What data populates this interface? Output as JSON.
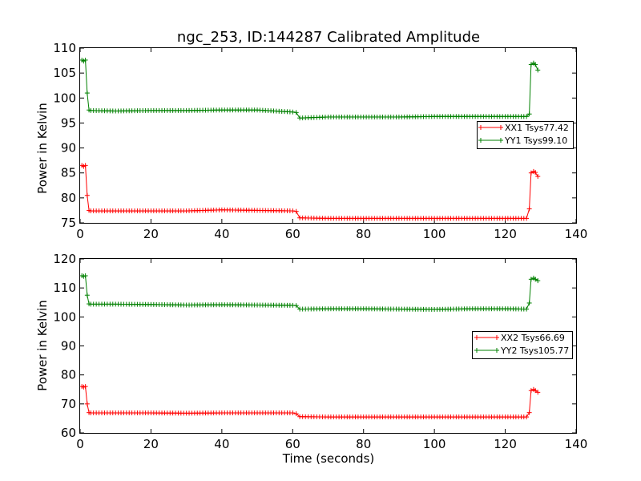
{
  "chart_data": [
    {
      "type": "line",
      "title": "ngc_253, ID:144287 Calibrated Amplitude",
      "xlabel": "",
      "ylabel": "Power in Kelvin",
      "xlim": [
        0,
        140
      ],
      "ylim": [
        75,
        110
      ],
      "xticks": [
        0,
        20,
        40,
        60,
        80,
        100,
        120,
        140
      ],
      "yticks": [
        75,
        80,
        85,
        90,
        95,
        100,
        105,
        110
      ],
      "legend_position": "right",
      "series": [
        {
          "name": "XX1 Tsys77.42",
          "color": "#ff0000",
          "x": [
            0.5,
            1.0,
            1.5,
            2.0,
            2.5,
            3.0,
            10,
            20,
            30,
            40,
            50,
            60,
            61,
            62,
            70,
            80,
            90,
            100,
            110,
            120,
            126,
            126.8,
            127.3,
            128,
            128.5,
            129.2
          ],
          "y": [
            86.5,
            86.3,
            86.5,
            80.5,
            77.5,
            77.4,
            77.4,
            77.4,
            77.4,
            77.6,
            77.5,
            77.4,
            77.3,
            76.0,
            75.9,
            75.9,
            75.9,
            75.9,
            75.9,
            75.9,
            75.9,
            77.8,
            85.0,
            85.3,
            85.1,
            84.3
          ]
        },
        {
          "name": "YY1 Tsys99.10",
          "color": "#008000",
          "x": [
            0.5,
            1.0,
            1.5,
            2.0,
            2.5,
            3.0,
            10,
            20,
            30,
            40,
            50,
            60,
            61,
            62,
            70,
            80,
            90,
            100,
            110,
            120,
            126,
            126.8,
            127.3,
            128,
            128.5,
            129.2
          ],
          "y": [
            107.6,
            107.4,
            107.6,
            101.0,
            97.6,
            97.5,
            97.4,
            97.5,
            97.5,
            97.6,
            97.6,
            97.2,
            97.1,
            96.0,
            96.2,
            96.2,
            96.2,
            96.3,
            96.3,
            96.3,
            96.3,
            96.8,
            106.7,
            107.0,
            106.7,
            105.6
          ]
        }
      ]
    },
    {
      "type": "line",
      "title": "",
      "xlabel": "Time (seconds)",
      "ylabel": "Power in Kelvin",
      "xlim": [
        0,
        140
      ],
      "ylim": [
        60,
        120
      ],
      "xticks": [
        0,
        20,
        40,
        60,
        80,
        100,
        120,
        140
      ],
      "yticks": [
        60,
        70,
        80,
        90,
        100,
        110,
        120
      ],
      "legend_position": "right",
      "series": [
        {
          "name": "XX2 Tsys66.69",
          "color": "#ff0000",
          "x": [
            0.5,
            1.0,
            1.5,
            2.0,
            2.5,
            3.0,
            10,
            20,
            30,
            40,
            50,
            60,
            61,
            62,
            70,
            80,
            90,
            100,
            110,
            120,
            126,
            126.8,
            127.3,
            128,
            128.5,
            129.2
          ],
          "y": [
            76.0,
            75.8,
            76.0,
            70.0,
            67.0,
            66.9,
            66.9,
            66.9,
            66.8,
            66.9,
            66.9,
            66.9,
            66.6,
            65.6,
            65.5,
            65.5,
            65.5,
            65.5,
            65.5,
            65.5,
            65.5,
            67.0,
            74.6,
            75.0,
            74.6,
            74.0
          ]
        },
        {
          "name": "YY2 Tsys105.77",
          "color": "#008000",
          "x": [
            0.5,
            1.0,
            1.5,
            2.0,
            2.5,
            3.0,
            10,
            20,
            30,
            40,
            50,
            60,
            61,
            62,
            70,
            80,
            90,
            100,
            110,
            120,
            126,
            126.8,
            127.3,
            128,
            128.5,
            129.2
          ],
          "y": [
            114.2,
            114.0,
            114.2,
            107.5,
            104.5,
            104.4,
            104.4,
            104.3,
            104.1,
            104.2,
            104.1,
            104.0,
            103.9,
            102.7,
            102.8,
            102.8,
            102.7,
            102.6,
            102.8,
            102.8,
            102.7,
            104.8,
            113.0,
            113.4,
            113.0,
            112.5
          ]
        }
      ]
    }
  ]
}
